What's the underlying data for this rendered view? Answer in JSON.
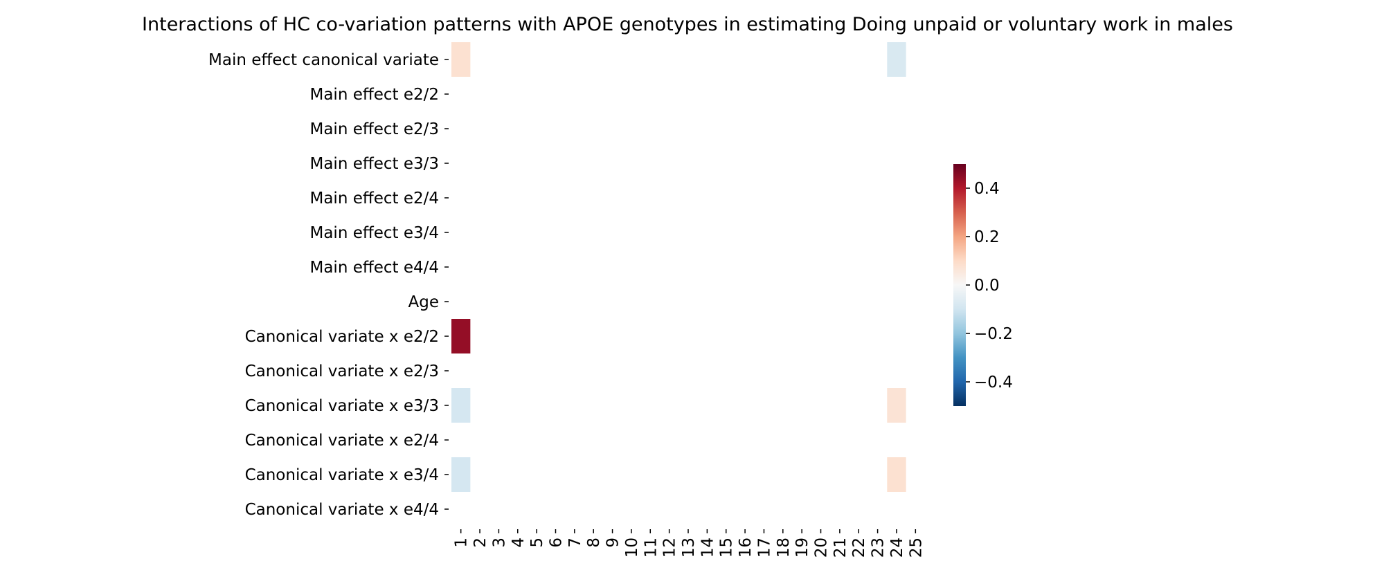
{
  "chart_data": {
    "type": "heatmap",
    "title": "Interactions of HC co-variation patterns with APOE genotypes in estimating Doing unpaid or voluntary work in males",
    "rows": [
      "Main effect canonical variate",
      "Main effect e2/2",
      "Main effect e2/3",
      "Main effect e3/3",
      "Main effect e2/4",
      "Main effect e3/4",
      "Main effect e4/4",
      "Age",
      "Canonical variate x e2/2",
      "Canonical variate x e2/3",
      "Canonical variate x e3/3",
      "Canonical variate x e2/4",
      "Canonical variate x e3/4",
      "Canonical variate x e4/4"
    ],
    "columns": [
      "1",
      "2",
      "3",
      "4",
      "5",
      "6",
      "7",
      "8",
      "9",
      "10",
      "11",
      "12",
      "13",
      "14",
      "15",
      "16",
      "17",
      "18",
      "19",
      "20",
      "21",
      "22",
      "23",
      "24",
      "25"
    ],
    "cells": [
      {
        "row": 0,
        "col": 0,
        "value": 0.08
      },
      {
        "row": 0,
        "col": 23,
        "value": -0.08
      },
      {
        "row": 8,
        "col": 0,
        "value": 0.44
      },
      {
        "row": 10,
        "col": 0,
        "value": -0.09
      },
      {
        "row": 10,
        "col": 23,
        "value": 0.07
      },
      {
        "row": 12,
        "col": 0,
        "value": -0.09
      },
      {
        "row": 12,
        "col": 23,
        "value": 0.08
      }
    ],
    "colorbar": {
      "range": [
        -0.5,
        0.5
      ],
      "ticks": [
        0.4,
        0.2,
        0.0,
        -0.2,
        -0.4
      ],
      "tick_labels": [
        "0.4",
        "0.2",
        "0.0",
        "−0.2",
        "−0.4"
      ],
      "colormap": "RdBu_r"
    }
  }
}
